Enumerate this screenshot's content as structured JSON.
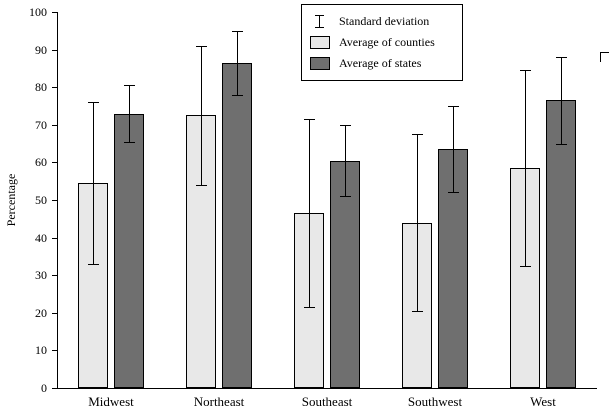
{
  "figure": {
    "background": "#ffffff"
  },
  "legend": {
    "items": [
      {
        "label": "Standard deviation",
        "type": "errorbar"
      },
      {
        "label": "Average of counties",
        "type": "swatch",
        "color": "#e8e8e8"
      },
      {
        "label": "Average of states",
        "type": "swatch",
        "color": "#6f6f6f"
      }
    ]
  },
  "chart_data": {
    "type": "bar",
    "title": "",
    "xlabel": "",
    "ylabel": "Percentage",
    "ylim": [
      0,
      100
    ],
    "ytick_step": 10,
    "grid": false,
    "legend_position": "top-center",
    "categories": [
      "Midwest",
      "Northeast",
      "Southeast",
      "Southwest",
      "West"
    ],
    "series": [
      {
        "name": "Average of counties",
        "color": "#e8e8e8",
        "values": [
          54.5,
          72.5,
          46.5,
          44,
          58.5
        ],
        "sd": [
          21.5,
          18.5,
          25,
          23.5,
          26
        ]
      },
      {
        "name": "Average of states",
        "color": "#6f6f6f",
        "values": [
          73,
          86.5,
          60.5,
          63.5,
          76.5
        ],
        "sd": [
          7.5,
          8.5,
          9.5,
          11.5,
          11.5
        ]
      }
    ]
  }
}
